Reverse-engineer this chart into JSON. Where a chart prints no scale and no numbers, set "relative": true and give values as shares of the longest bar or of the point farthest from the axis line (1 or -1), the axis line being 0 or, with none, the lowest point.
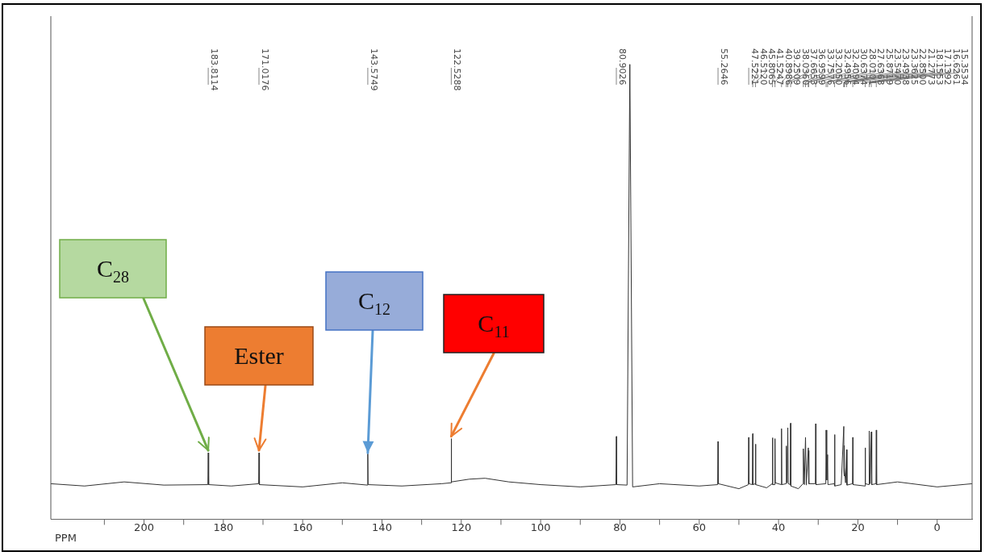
{
  "chart_data": {
    "type": "line",
    "relative": true,
    "xlabel": "PPM",
    "xlim": [
      223.5,
      -8.8
    ],
    "xticks": [
      {
        "value": 210,
        "label": null
      },
      200,
      {
        "value": 190,
        "label": null
      },
      180,
      {
        "value": 170,
        "label": null
      },
      160,
      {
        "value": 150,
        "label": null
      },
      140,
      {
        "value": 130,
        "label": null
      },
      120,
      {
        "value": 110,
        "label": null
      },
      100,
      {
        "value": 90,
        "label": null
      },
      80,
      {
        "value": 70,
        "label": null
      },
      60,
      {
        "value": 50,
        "label": null
      },
      40,
      {
        "value": 30,
        "label": null
      },
      20,
      {
        "value": 10,
        "label": null
      },
      0
    ],
    "grid": false,
    "legend": false,
    "marker": "none",
    "line_style": "solid",
    "series": [
      {
        "color": "#333333",
        "x": [
          223.5,
          215,
          205,
          195,
          183.9,
          183.8114,
          183.7,
          178,
          171.1,
          171.0176,
          170.9,
          160,
          150,
          143.65,
          143.5749,
          143.5,
          135,
          125,
          122.6,
          122.5288,
          122.45,
          118,
          114,
          108,
          100,
          90,
          81.0,
          80.9026,
          80.8,
          78.2,
          77.5,
          76.8,
          70,
          60,
          55.35,
          55.2646,
          55.18,
          50,
          47.6,
          47.5221,
          47.45,
          46.6,
          46.512,
          46.43,
          45.88,
          45.8065,
          45.73,
          43,
          41.6,
          41.5247,
          41.45,
          40.97,
          40.8986,
          40.82,
          39.32,
          39.2509,
          39.18,
          38.1,
          38.036,
          37.85,
          37.6653,
          37.55,
          37.03,
          36.9599,
          36.89,
          35,
          33.83,
          33.7576,
          33.5,
          33.205,
          33.0,
          32.4956,
          32.45,
          32.4094,
          32.3,
          30.72,
          30.6374,
          30.55,
          28.09,
          28.0101,
          27.85,
          27.6368,
          27.55,
          25.95,
          25.8719,
          25.79,
          24.2,
          23.547,
          23.52,
          23.4938,
          23.43,
          23.3625,
          23.1,
          22.85,
          22.75,
          21.36,
          21.2773,
          21.2,
          18.23,
          18.1553,
          18.08,
          17.21,
          17.1392,
          16.9,
          16.6261,
          16.5,
          15.43,
          15.3534,
          15.27,
          10,
          0,
          -8.8
        ],
        "values": [
          0.078,
          0.073,
          0.082,
          0.075,
          0.076,
          0.146,
          0.076,
          0.073,
          0.078,
          0.146,
          0.076,
          0.071,
          0.08,
          0.075,
          0.144,
          0.076,
          0.073,
          0.078,
          0.08,
          0.177,
          0.082,
          0.088,
          0.09,
          0.082,
          0.076,
          0.071,
          0.076,
          0.182,
          0.076,
          0.075,
          1,
          0.071,
          0.078,
          0.073,
          0.076,
          0.171,
          0.078,
          0.067,
          0.076,
          0.18,
          0.078,
          0.076,
          0.188,
          0.076,
          0.078,
          0.165,
          0.076,
          0.069,
          0.078,
          0.179,
          0.076,
          0.076,
          0.177,
          0.08,
          0.076,
          0.199,
          0.076,
          0.078,
          0.161,
          0.08,
          0.201,
          0.078,
          0.076,
          0.211,
          0.073,
          0.067,
          0.078,
          0.155,
          0.076,
          0.18,
          0.075,
          0.157,
          0.114,
          0.151,
          0.078,
          0.078,
          0.21,
          0.076,
          0.078,
          0.196,
          0.086,
          0.142,
          0.076,
          0.078,
          0.186,
          0.073,
          0.076,
          0.204,
          0.105,
          0.162,
          0.095,
          0.114,
          0.08,
          0.153,
          0.075,
          0.078,
          0.18,
          0.076,
          0.073,
          0.157,
          0.078,
          0.076,
          0.194,
          0.078,
          0.192,
          0.076,
          0.078,
          0.196,
          0.076,
          0.082,
          0.071,
          0.078
        ]
      }
    ],
    "annotations": [
      "183.8114",
      "171.0176",
      "143.5749",
      "122.5288",
      "80.9026",
      "55.2646",
      "47.5221",
      "46.5120",
      "45.8065",
      "41.5247",
      "40.8986",
      "39.2509",
      "38.0360",
      "37.6653",
      "36.9599",
      "33.7576",
      "33.2050",
      "32.4956",
      "32.4094",
      "30.6374",
      "28.0101",
      "27.6368",
      "25.8719",
      "23.5470",
      "23.4938",
      "23.3625",
      "22.8500",
      "21.2773",
      "18.1553",
      "17.1392",
      "16.6261",
      "15.3534",
      {
        "text": "C$_{28}$",
        "x": 183.8114,
        "y": 0.146
      },
      {
        "text": "Ester",
        "x": 171.0176,
        "y": 0.146
      },
      {
        "text": "C$_{12}$",
        "x": 143.5749,
        "y": 0.144
      },
      {
        "text": "C$_{11}$",
        "x": 122.5288,
        "y": 0.177
      }
    ]
  }
}
